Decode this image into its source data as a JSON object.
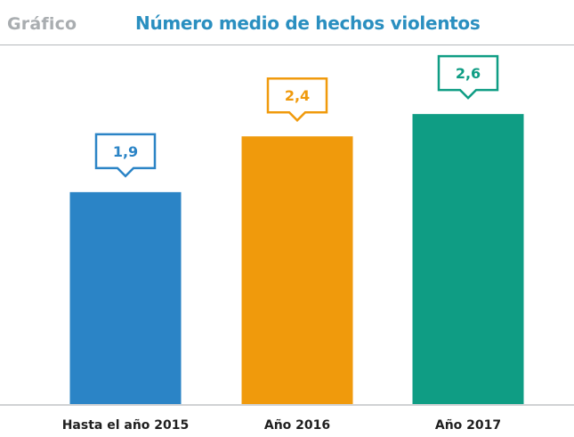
{
  "header": {
    "label": "Gráfico",
    "title": "Número medio de hechos violentos",
    "title_color": "#2a8fc0"
  },
  "chart_data": {
    "type": "bar",
    "title": "Número medio de hechos violentos",
    "categories": [
      "Hasta el año 2015",
      "Año 2016",
      "Año 2017"
    ],
    "values": [
      1.9,
      2.4,
      2.6
    ],
    "value_labels": [
      "1,9",
      "2,4",
      "2,6"
    ],
    "colors": [
      "#2b84c6",
      "#f09a0c",
      "#0f9d84"
    ],
    "label_colors": [
      "#2b84c6",
      "#f09a0c",
      "#0f9d84"
    ],
    "ylim": [
      0,
      3.0
    ],
    "grid": false,
    "legend": "none",
    "xlabel": "",
    "ylabel": ""
  }
}
